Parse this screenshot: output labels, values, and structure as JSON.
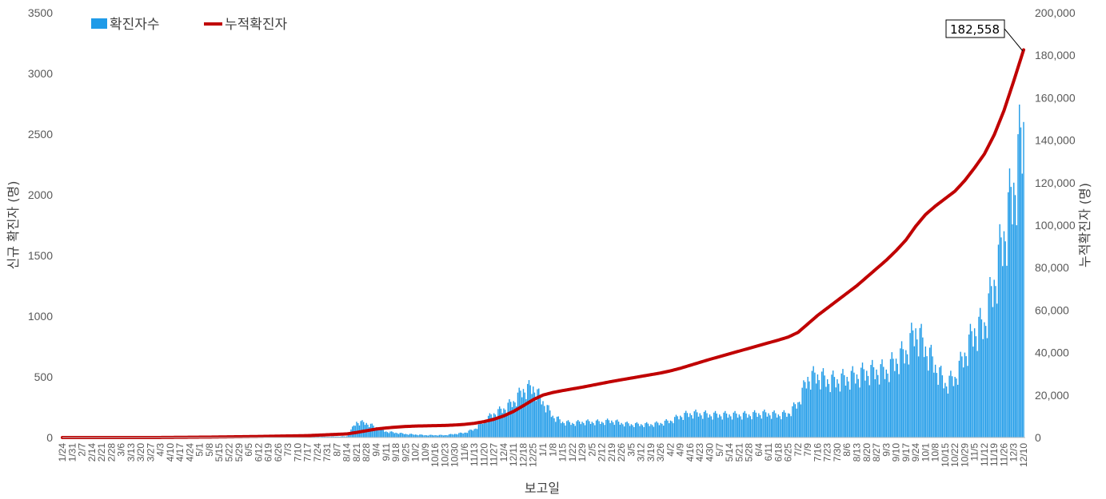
{
  "chart_data": {
    "type": "bar+line",
    "xlabel": "보고일",
    "ylabel_left": "신규 확진자 (명)",
    "ylabel_right": "누적확진자 (명)",
    "ylim_left": [
      0,
      3500
    ],
    "yticks_left": [
      0,
      500,
      1000,
      1500,
      2000,
      2500,
      3000,
      3500
    ],
    "ylim_right": [
      0,
      200000
    ],
    "yticks_right": [
      "0",
      "20,000",
      "40,000",
      "60,000",
      "80,000",
      "100,000",
      "120,000",
      "140,000",
      "160,000",
      "180,000",
      "200,000"
    ],
    "x_tick_labels": [
      "1/24",
      "1/31",
      "2/7",
      "2/14",
      "2/21",
      "2/28",
      "3/6",
      "3/13",
      "3/20",
      "3/27",
      "4/3",
      "4/10",
      "4/17",
      "4/24",
      "5/1",
      "5/8",
      "5/15",
      "5/22",
      "5/29",
      "6/5",
      "6/12",
      "6/19",
      "6/26",
      "7/3",
      "7/10",
      "7/17",
      "7/24",
      "7/31",
      "8/7",
      "8/14",
      "8/21",
      "8/28",
      "9/4",
      "9/11",
      "9/18",
      "9/25",
      "10/2",
      "10/9",
      "10/16",
      "10/23",
      "10/30",
      "11/6",
      "11/13",
      "11/20",
      "11/27",
      "12/4",
      "12/11",
      "12/18",
      "12/25",
      "1/1",
      "1/8",
      "1/15",
      "1/22",
      "1/29",
      "2/5",
      "2/12",
      "2/19",
      "2/26",
      "3/5",
      "3/12",
      "3/19",
      "3/26",
      "4/2",
      "4/9",
      "4/16",
      "4/23",
      "4/30",
      "5/7",
      "5/14",
      "5/21",
      "5/28",
      "6/4",
      "6/11",
      "6/18",
      "6/25",
      "7/2",
      "7/9",
      "7/16",
      "7/23",
      "7/30",
      "8/6",
      "8/13",
      "8/20",
      "8/27",
      "9/3",
      "9/10",
      "9/17",
      "9/24",
      "10/1",
      "10/8",
      "10/15",
      "10/22",
      "10/29",
      "11/5",
      "11/12",
      "11/19",
      "11/26",
      "12/3",
      "12/10"
    ],
    "weekly_points": [
      {
        "label": "1/24",
        "new": 0,
        "cum": 0
      },
      {
        "label": "2/28",
        "new": 3,
        "cum": 1
      },
      {
        "label": "4/3",
        "new": 3,
        "cum": 20
      },
      {
        "label": "5/8",
        "new": 2,
        "cum": 200
      },
      {
        "label": "6/12",
        "new": 3,
        "cum": 500
      },
      {
        "label": "7/17",
        "new": 5,
        "cum": 900
      },
      {
        "label": "8/7",
        "new": 8,
        "cum": 1500
      },
      {
        "label": "8/14",
        "new": 10,
        "cum": 1700
      },
      {
        "label": "8/21",
        "new": 130,
        "cum": 2400
      },
      {
        "label": "8/28",
        "new": 120,
        "cum": 3200
      },
      {
        "label": "9/4",
        "new": 85,
        "cum": 4000
      },
      {
        "label": "9/11",
        "new": 50,
        "cum": 4500
      },
      {
        "label": "9/18",
        "new": 40,
        "cum": 4900
      },
      {
        "label": "9/25",
        "new": 30,
        "cum": 5200
      },
      {
        "label": "10/2",
        "new": 25,
        "cum": 5400
      },
      {
        "label": "10/9",
        "new": 20,
        "cum": 5500
      },
      {
        "label": "10/16",
        "new": 20,
        "cum": 5600
      },
      {
        "label": "10/23",
        "new": 20,
        "cum": 5700
      },
      {
        "label": "10/30",
        "new": 30,
        "cum": 5900
      },
      {
        "label": "11/6",
        "new": 40,
        "cum": 6200
      },
      {
        "label": "11/13",
        "new": 70,
        "cum": 6700
      },
      {
        "label": "11/20",
        "new": 140,
        "cum": 7500
      },
      {
        "label": "11/27",
        "new": 200,
        "cum": 8600
      },
      {
        "label": "12/4",
        "new": 240,
        "cum": 10200
      },
      {
        "label": "12/11",
        "new": 300,
        "cum": 12300
      },
      {
        "label": "12/18",
        "new": 400,
        "cum": 15000
      },
      {
        "label": "12/25",
        "new": 420,
        "cum": 17800
      },
      {
        "label": "1/1",
        "new": 300,
        "cum": 20000
      },
      {
        "label": "1/8",
        "new": 180,
        "cum": 21200
      },
      {
        "label": "1/15",
        "new": 130,
        "cum": 22100
      },
      {
        "label": "1/22",
        "new": 120,
        "cum": 22900
      },
      {
        "label": "1/29",
        "new": 130,
        "cum": 23700
      },
      {
        "label": "2/5",
        "new": 130,
        "cum": 24600
      },
      {
        "label": "2/12",
        "new": 130,
        "cum": 25500
      },
      {
        "label": "2/19",
        "new": 140,
        "cum": 26400
      },
      {
        "label": "2/26",
        "new": 120,
        "cum": 27200
      },
      {
        "label": "3/5",
        "new": 110,
        "cum": 28000
      },
      {
        "label": "3/12",
        "new": 110,
        "cum": 28800
      },
      {
        "label": "3/19",
        "new": 110,
        "cum": 29600
      },
      {
        "label": "3/26",
        "new": 120,
        "cum": 30400
      },
      {
        "label": "4/2",
        "new": 140,
        "cum": 31400
      },
      {
        "label": "4/9",
        "new": 180,
        "cum": 32600
      },
      {
        "label": "4/16",
        "new": 200,
        "cum": 34000
      },
      {
        "label": "4/23",
        "new": 200,
        "cum": 35400
      },
      {
        "label": "4/30",
        "new": 190,
        "cum": 36800
      },
      {
        "label": "5/7",
        "new": 190,
        "cum": 38100
      },
      {
        "label": "5/14",
        "new": 190,
        "cum": 39400
      },
      {
        "label": "5/21",
        "new": 190,
        "cum": 40700
      },
      {
        "label": "5/28",
        "new": 190,
        "cum": 42000
      },
      {
        "label": "6/4",
        "new": 200,
        "cum": 43300
      },
      {
        "label": "6/11",
        "new": 200,
        "cum": 44600
      },
      {
        "label": "6/18",
        "new": 190,
        "cum": 45900
      },
      {
        "label": "6/25",
        "new": 200,
        "cum": 47300
      },
      {
        "label": "7/2",
        "new": 290,
        "cum": 49500
      },
      {
        "label": "7/9",
        "new": 500,
        "cum": 53500
      },
      {
        "label": "7/16",
        "new": 520,
        "cum": 57500
      },
      {
        "label": "7/23",
        "new": 480,
        "cum": 61000
      },
      {
        "label": "7/30",
        "new": 480,
        "cum": 64500
      },
      {
        "label": "8/6",
        "new": 500,
        "cum": 68000
      },
      {
        "label": "8/13",
        "new": 520,
        "cum": 71500
      },
      {
        "label": "8/20",
        "new": 550,
        "cum": 75500
      },
      {
        "label": "8/27",
        "new": 560,
        "cum": 79500
      },
      {
        "label": "9/3",
        "new": 560,
        "cum": 83500
      },
      {
        "label": "9/10",
        "new": 650,
        "cum": 88000
      },
      {
        "label": "9/17",
        "new": 720,
        "cum": 93000
      },
      {
        "label": "9/24",
        "new": 900,
        "cum": 99500
      },
      {
        "label": "10/1",
        "new": 750,
        "cum": 105000
      },
      {
        "label": "10/8",
        "new": 600,
        "cum": 109000
      },
      {
        "label": "10/15",
        "new": 450,
        "cum": 112500
      },
      {
        "label": "10/22",
        "new": 500,
        "cum": 116000
      },
      {
        "label": "10/29",
        "new": 700,
        "cum": 121000
      },
      {
        "label": "11/5",
        "new": 900,
        "cum": 127000
      },
      {
        "label": "11/12",
        "new": 950,
        "cum": 133500
      },
      {
        "label": "11/19",
        "new": 1300,
        "cum": 142500
      },
      {
        "label": "11/26",
        "new": 1700,
        "cum": 154000
      },
      {
        "label": "12/3",
        "new": 2100,
        "cum": 168000
      },
      {
        "label": "12/10",
        "new": 2600,
        "cum": 182558
      }
    ],
    "series": [
      {
        "name": "확진자수",
        "type": "bar",
        "axis": "left",
        "color": "#1f9be8"
      },
      {
        "name": "누적확진자",
        "type": "line",
        "axis": "right",
        "color": "#c00000"
      }
    ],
    "annotation": {
      "text": "182,558",
      "value": 182558
    },
    "grid": false,
    "legend_position": "top-left"
  }
}
